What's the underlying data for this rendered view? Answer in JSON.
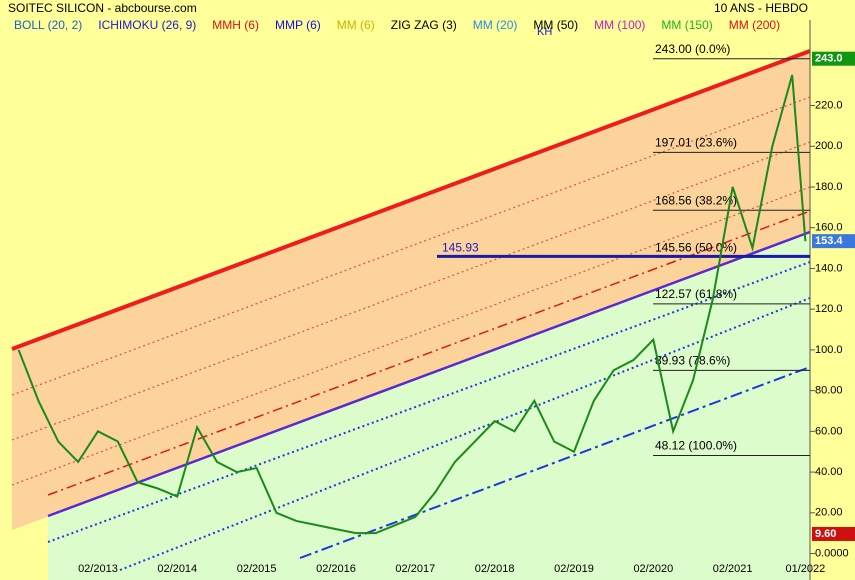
{
  "chart_data": {
    "type": "line",
    "title": "SOITEC SILICON - abcbourse.com",
    "subtitle": "10 ANS - HEBDO",
    "indicators": [
      {
        "name": "BOLL (20, 2)",
        "color": "#1a5fc8"
      },
      {
        "name": "ICHIMOKU (26, 9)",
        "color": "#1a1acc"
      },
      {
        "name": "MMH (6)",
        "color": "#e01010"
      },
      {
        "name": "MMP (6)",
        "color": "#1010e0"
      },
      {
        "name": "MM (6)",
        "color": "#c8b400"
      },
      {
        "name": "ZIG ZAG (3)",
        "color": "#000000"
      },
      {
        "name": "MM (20)",
        "color": "#2a8ae0"
      },
      {
        "name": "MM (50)",
        "color": "#000000"
      },
      {
        "name": "MM (100)",
        "color": "#c020c0"
      },
      {
        "name": "MM (150)",
        "color": "#20b020"
      },
      {
        "name": "MM (200)",
        "color": "#e01010"
      }
    ],
    "note": "KH",
    "x": [
      "02/2012",
      "05/2012",
      "08/2012",
      "11/2012",
      "02/2013",
      "05/2013",
      "08/2013",
      "11/2013",
      "02/2014",
      "05/2014",
      "08/2014",
      "11/2014",
      "02/2015",
      "05/2015",
      "08/2015",
      "11/2015",
      "02/2016",
      "05/2016",
      "08/2016",
      "11/2016",
      "02/2017",
      "05/2017",
      "08/2017",
      "11/2017",
      "02/2018",
      "05/2018",
      "08/2018",
      "11/2018",
      "02/2019",
      "05/2019",
      "08/2019",
      "11/2019",
      "02/2020",
      "05/2020",
      "08/2020",
      "11/2020",
      "02/2021",
      "05/2021",
      "08/2021",
      "11/2021",
      "01/2022"
    ],
    "series": [
      {
        "name": "SOITEC SILICON",
        "color": "#1a8a1a",
        "values": [
          100,
          75,
          55,
          45,
          60,
          55,
          35,
          32,
          28,
          62,
          45,
          40,
          42,
          20,
          16,
          14,
          12,
          10,
          10,
          14,
          18,
          30,
          45,
          55,
          65,
          60,
          75,
          55,
          50,
          75,
          90,
          95,
          105,
          60,
          85,
          125,
          180,
          150,
          200,
          235,
          153.4
        ]
      }
    ],
    "xlim": [
      "01/2012",
      "02/2022"
    ],
    "xticks": [
      "02/2013",
      "02/2014",
      "02/2015",
      "02/2016",
      "02/2017",
      "02/2018",
      "02/2019",
      "02/2020",
      "02/2021",
      "01/2022"
    ],
    "ylim": [
      -13,
      262
    ],
    "yticks": [
      {
        "value": 220,
        "label": "220.0"
      },
      {
        "value": 200,
        "label": "200.0"
      },
      {
        "value": 180,
        "label": "180.0"
      },
      {
        "value": 160,
        "label": "160.0"
      },
      {
        "value": 140,
        "label": "140.0"
      },
      {
        "value": 120,
        "label": "120.0"
      },
      {
        "value": 100,
        "label": "100.0"
      },
      {
        "value": 80,
        "label": "80.00"
      },
      {
        "value": 60,
        "label": "60.00"
      },
      {
        "value": 40,
        "label": "40.00"
      },
      {
        "value": 20,
        "label": "20.00"
      },
      {
        "value": 0,
        "label": "0.0000"
      }
    ],
    "price_markers": [
      {
        "value": 243,
        "label": "243.0",
        "color": "#129512"
      },
      {
        "value": 153.4,
        "label": "153.4",
        "color": "#3a78e0"
      },
      {
        "value": 9.6,
        "label": "9.60",
        "color": "#d01010"
      }
    ],
    "fib_levels": [
      {
        "value": 243,
        "label": "243.00  (0.0%)"
      },
      {
        "value": 197.01,
        "label": "197.01  (23.6%)"
      },
      {
        "value": 168.56,
        "label": "168.56  (38.2%)"
      },
      {
        "value": 145.56,
        "label": "145.56  (50.0%)"
      },
      {
        "value": 122.57,
        "label": "122.57  (61.8%)"
      },
      {
        "value": 89.93,
        "label": "89.93  (78.6%)"
      },
      {
        "value": 48.12,
        "label": "48.12  (100.0%)"
      }
    ],
    "support_line": 145.93
  }
}
